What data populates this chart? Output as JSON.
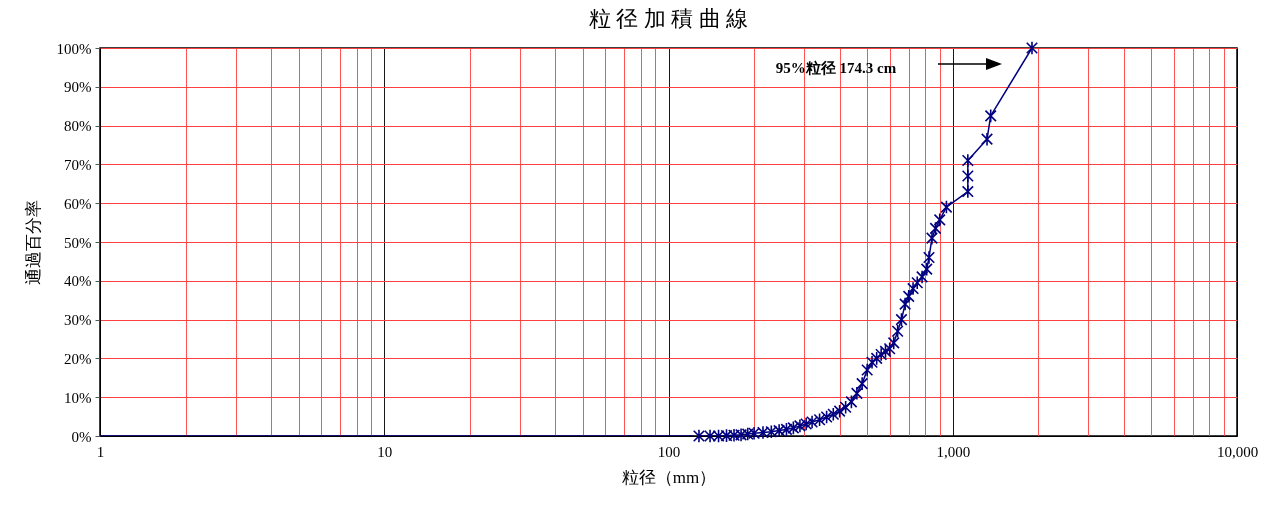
{
  "chart_data": {
    "type": "line",
    "title": "粒 径 加 積 曲 線",
    "xlabel": "粒径（mm）",
    "ylabel": "通過百分率",
    "log": "x",
    "grid": true,
    "marker": "cross",
    "xlim": [
      1,
      10000
    ],
    "ylim": [
      0,
      100
    ],
    "xticks": [
      1,
      {
        "value": 2,
        "label": null
      },
      {
        "value": 3,
        "label": null
      },
      {
        "value": 4,
        "label": null
      },
      {
        "value": 5,
        "label": null
      },
      {
        "value": 6,
        "label": null
      },
      {
        "value": 7,
        "label": null
      },
      {
        "value": 8,
        "label": null
      },
      {
        "value": 9,
        "label": null
      },
      10,
      {
        "value": 20,
        "label": null
      },
      {
        "value": 30,
        "label": null
      },
      {
        "value": 40,
        "label": null
      },
      {
        "value": 50,
        "label": null
      },
      {
        "value": 60,
        "label": null
      },
      {
        "value": 70,
        "label": null
      },
      {
        "value": 80,
        "label": null
      },
      {
        "value": 90,
        "label": null
      },
      100,
      {
        "value": 200,
        "label": null
      },
      {
        "value": 300,
        "label": null
      },
      {
        "value": 400,
        "label": null
      },
      {
        "value": 500,
        "label": null
      },
      {
        "value": 600,
        "label": null
      },
      {
        "value": 700,
        "label": null
      },
      {
        "value": 800,
        "label": null
      },
      {
        "value": 900,
        "label": null
      },
      {
        "value": 1000,
        "label": "1,000"
      },
      {
        "value": 2000,
        "label": null
      },
      {
        "value": 3000,
        "label": null
      },
      {
        "value": 4000,
        "label": null
      },
      {
        "value": 5000,
        "label": null
      },
      {
        "value": 6000,
        "label": null
      },
      {
        "value": 7000,
        "label": null
      },
      {
        "value": 8000,
        "label": null
      },
      {
        "value": 9000,
        "label": null
      },
      {
        "value": 10000,
        "label": "10,000"
      }
    ],
    "yticks": [
      {
        "value": 0,
        "label": "0%"
      },
      {
        "value": 10,
        "label": "10%"
      },
      {
        "value": 20,
        "label": "20%"
      },
      {
        "value": 30,
        "label": "30%"
      },
      {
        "value": 40,
        "label": "40%"
      },
      {
        "value": 50,
        "label": "50%"
      },
      {
        "value": 60,
        "label": "60%"
      },
      {
        "value": 70,
        "label": "70%"
      },
      {
        "value": 80,
        "label": "80%"
      },
      {
        "value": 90,
        "label": "90%"
      },
      {
        "value": 100,
        "label": "100%"
      }
    ],
    "annotations": [
      "95%粒径  174.3 cm"
    ],
    "series": [
      {
        "color": "#000080",
        "marker": "none",
        "x": [
          1,
          123
        ],
        "values": [
          0,
          0
        ]
      },
      {
        "color": "#000080",
        "x": [
          128,
          140,
          150,
          160,
          170,
          180,
          190,
          200,
          215,
          230,
          245,
          260,
          275,
          290,
          305,
          320,
          340,
          360,
          380,
          400,
          420,
          440,
          460,
          480,
          500,
          520,
          540,
          560,
          580,
          600,
          620,
          640,
          660,
          680,
          700,
          725,
          750,
          780,
          810,
          825,
          845,
          870,
          900,
          950,
          1130,
          1130,
          1130,
          1320,
          1360,
          1900
        ],
        "values": [
          0,
          0,
          0,
          0.1,
          0.2,
          0.3,
          0.5,
          0.7,
          0.9,
          1.1,
          1.4,
          1.7,
          2.1,
          2.6,
          3.1,
          3.6,
          4.2,
          4.9,
          5.6,
          6.4,
          7.4,
          8.8,
          11,
          13.5,
          17,
          19,
          20,
          21,
          21.8,
          22.5,
          24,
          27,
          30,
          34,
          36,
          38,
          39.5,
          41,
          43,
          46,
          51,
          53.5,
          55.7,
          59,
          63,
          67,
          71,
          76.5,
          82.5,
          100
        ]
      }
    ]
  }
}
